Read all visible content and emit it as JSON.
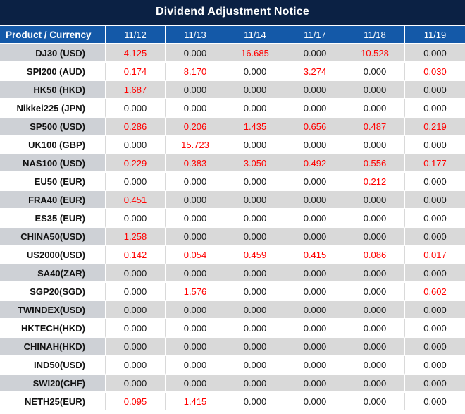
{
  "title": "Dividend Adjustment Notice",
  "colors": {
    "title_bar_navy": "#0b2144",
    "header_blue": "#1459a8",
    "row_gray": "#d9d9d9",
    "label_gray": "#ced1d6",
    "value_red": "#ff0000",
    "value_black": "#1a1a1a"
  },
  "table": {
    "header": {
      "product_label": "Product / Currency",
      "dates": [
        "11/12",
        "11/13",
        "11/14",
        "11/17",
        "11/18",
        "11/19"
      ]
    },
    "zero_display": "0.000",
    "rows": [
      {
        "product": "DJ30 (USD)",
        "values": [
          "4.125",
          "0.000",
          "16.685",
          "0.000",
          "10.528",
          "0.000"
        ]
      },
      {
        "product": "SPI200 (AUD)",
        "values": [
          "0.174",
          "8.170",
          "0.000",
          "3.274",
          "0.000",
          "0.030"
        ]
      },
      {
        "product": "HK50 (HKD)",
        "values": [
          "1.687",
          "0.000",
          "0.000",
          "0.000",
          "0.000",
          "0.000"
        ]
      },
      {
        "product": "Nikkei225 (JPN)",
        "values": [
          "0.000",
          "0.000",
          "0.000",
          "0.000",
          "0.000",
          "0.000"
        ]
      },
      {
        "product": "SP500 (USD)",
        "values": [
          "0.286",
          "0.206",
          "1.435",
          "0.656",
          "0.487",
          "0.219"
        ]
      },
      {
        "product": "UK100 (GBP)",
        "values": [
          "0.000",
          "15.723",
          "0.000",
          "0.000",
          "0.000",
          "0.000"
        ]
      },
      {
        "product": "NAS100 (USD)",
        "values": [
          "0.229",
          "0.383",
          "3.050",
          "0.492",
          "0.556",
          "0.177"
        ]
      },
      {
        "product": "EU50 (EUR)",
        "values": [
          "0.000",
          "0.000",
          "0.000",
          "0.000",
          "0.212",
          "0.000"
        ]
      },
      {
        "product": "FRA40 (EUR)",
        "values": [
          "0.451",
          "0.000",
          "0.000",
          "0.000",
          "0.000",
          "0.000"
        ]
      },
      {
        "product": "ES35 (EUR)",
        "values": [
          "0.000",
          "0.000",
          "0.000",
          "0.000",
          "0.000",
          "0.000"
        ]
      },
      {
        "product": "CHINA50(USD)",
        "values": [
          "1.258",
          "0.000",
          "0.000",
          "0.000",
          "0.000",
          "0.000"
        ]
      },
      {
        "product": "US2000(USD)",
        "values": [
          "0.142",
          "0.054",
          "0.459",
          "0.415",
          "0.086",
          "0.017"
        ]
      },
      {
        "product": "SA40(ZAR)",
        "values": [
          "0.000",
          "0.000",
          "0.000",
          "0.000",
          "0.000",
          "0.000"
        ]
      },
      {
        "product": "SGP20(SGD)",
        "values": [
          "0.000",
          "1.576",
          "0.000",
          "0.000",
          "0.000",
          "0.602"
        ]
      },
      {
        "product": "TWINDEX(USD)",
        "values": [
          "0.000",
          "0.000",
          "0.000",
          "0.000",
          "0.000",
          "0.000"
        ]
      },
      {
        "product": "HKTECH(HKD)",
        "values": [
          "0.000",
          "0.000",
          "0.000",
          "0.000",
          "0.000",
          "0.000"
        ]
      },
      {
        "product": "CHINAH(HKD)",
        "values": [
          "0.000",
          "0.000",
          "0.000",
          "0.000",
          "0.000",
          "0.000"
        ]
      },
      {
        "product": "IND50(USD)",
        "values": [
          "0.000",
          "0.000",
          "0.000",
          "0.000",
          "0.000",
          "0.000"
        ]
      },
      {
        "product": "SWI20(CHF)",
        "values": [
          "0.000",
          "0.000",
          "0.000",
          "0.000",
          "0.000",
          "0.000"
        ]
      },
      {
        "product": "NETH25(EUR)",
        "values": [
          "0.095",
          "1.415",
          "0.000",
          "0.000",
          "0.000",
          "0.000"
        ]
      }
    ]
  }
}
